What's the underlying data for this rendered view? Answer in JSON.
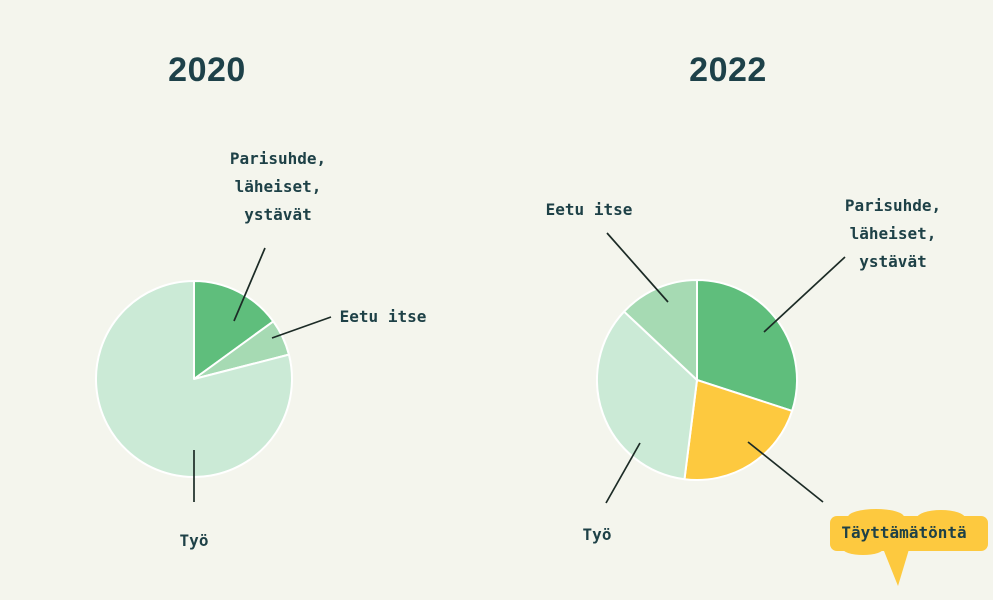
{
  "palette": {
    "background": "#f4f5ed",
    "title": "#1d4149",
    "text": "#1e4147",
    "line": "#1c2b26",
    "yellow": "#fdc93f",
    "green_medium": "#5fbe7c",
    "green_light": "#a6dab3",
    "green_pale": "#cbead6"
  },
  "chart_data": [
    {
      "type": "pie",
      "title": "2020",
      "unit": "percent (estimated from slice angles, no values printed on chart)",
      "start_angle_deg": 0,
      "direction": "clockwise",
      "legend_position": "callout-labels-with-leader-lines",
      "segments": [
        {
          "id": "parisuhde",
          "label": "Parisuhde, läheiset, ystävät",
          "value": 15,
          "color": "#5fbe7c"
        },
        {
          "id": "eetu-itse",
          "label": "Eetu itse",
          "value": 6,
          "color": "#a6dab3"
        },
        {
          "id": "tyo",
          "label": "Työ",
          "value": 79,
          "color": "#cbead6"
        }
      ]
    },
    {
      "type": "pie",
      "title": "2022",
      "unit": "percent (estimated from slice angles, no values printed on chart)",
      "start_angle_deg": 0,
      "direction": "clockwise",
      "legend_position": "callout-labels-with-leader-lines",
      "segments": [
        {
          "id": "parisuhde",
          "label": "Parisuhde, läheiset, ystävät",
          "value": 30,
          "color": "#5fbe7c"
        },
        {
          "id": "tayttamatonta",
          "label": "Täyttämätöntä",
          "value": 22,
          "color": "#fdc93f"
        },
        {
          "id": "tyo",
          "label": "Työ",
          "value": 35,
          "color": "#cbead6"
        },
        {
          "id": "eetu-itse",
          "label": "Eetu itse",
          "value": 13,
          "color": "#a6dab3"
        }
      ]
    }
  ],
  "callouts": {
    "pie2020": {
      "parisuhde": [
        "Parisuhde,",
        "läheiset,",
        "ystävät"
      ],
      "eetu": "Eetu itse",
      "tyo": "Työ"
    },
    "pie2022": {
      "eetu": "Eetu itse",
      "parisuhde": [
        "Parisuhde,",
        "läheiset,",
        "ystävät"
      ],
      "tyo": "Työ",
      "tayttamatonta": "Täyttämätöntä"
    }
  }
}
